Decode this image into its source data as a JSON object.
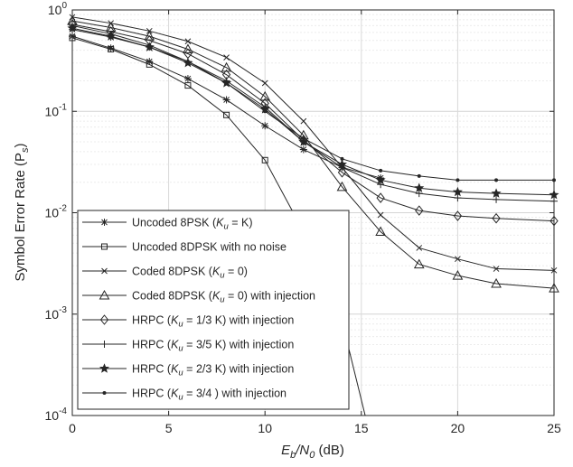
{
  "chart_data": {
    "type": "line",
    "xlabel": {
      "main": "E",
      "sub1": "b",
      "slash": "/N",
      "sub2": "0",
      "unit": " (dB)"
    },
    "ylabel": {
      "main": "Symbol Error Rate (P",
      "sub": "s",
      "close": ")"
    },
    "xlim": [
      0,
      25
    ],
    "ylim": [
      0.0001,
      1
    ],
    "yscale": "log",
    "grid": true,
    "legend_position": "bottom-left",
    "x_ticks": [
      "0",
      "5",
      "10",
      "15",
      "20",
      "25"
    ],
    "y_ticks": [
      {
        "base": "10",
        "exp": "0",
        "value": 1
      },
      {
        "base": "10",
        "exp": "-1",
        "value": 0.1
      },
      {
        "base": "10",
        "exp": "-2",
        "value": 0.01
      },
      {
        "base": "10",
        "exp": "-3",
        "value": 0.001
      },
      {
        "base": "10",
        "exp": "-4",
        "value": 0.0001
      }
    ],
    "series": [
      {
        "name": "Uncoded 8PSK (Ku = K)",
        "legend": {
          "pre": "Uncoded 8PSK (",
          "sym": "K",
          "sub": "u",
          "post": " = K)"
        },
        "marker": "asterisk",
        "x": [
          0,
          2,
          4,
          6,
          8,
          10,
          12,
          14,
          16
        ],
        "y": [
          0.55,
          0.42,
          0.31,
          0.21,
          0.13,
          0.072,
          0.042,
          0.028,
          0.022
        ]
      },
      {
        "name": "Uncoded 8DPSK with no noise",
        "legend": {
          "pre": "Uncoded 8DPSK with no noise",
          "sym": "",
          "sub": "",
          "post": ""
        },
        "marker": "square",
        "x": [
          0,
          2,
          4,
          6,
          8,
          10,
          12,
          14,
          15.2
        ],
        "y": [
          0.53,
          0.41,
          0.29,
          0.18,
          0.092,
          0.033,
          0.0065,
          0.00085,
          0.0001
        ]
      },
      {
        "name": "Coded 8DPSK (Ku = 0)",
        "legend": {
          "pre": "Coded 8DPSK (",
          "sym": "K",
          "sub": "u",
          "post": " = 0)"
        },
        "marker": "x",
        "x": [
          0,
          2,
          4,
          6,
          8,
          10,
          12,
          14,
          16,
          18,
          20,
          22,
          25
        ],
        "y": [
          0.85,
          0.74,
          0.62,
          0.49,
          0.34,
          0.19,
          0.08,
          0.028,
          0.0095,
          0.0045,
          0.0035,
          0.0028,
          0.0027
        ]
      },
      {
        "name": "Coded 8DPSK (Ku = 0) with injection",
        "legend": {
          "pre": "Coded 8DPSK (",
          "sym": "K",
          "sub": "u",
          "post": " = 0) with injection"
        },
        "marker": "triangle",
        "x": [
          0,
          2,
          4,
          6,
          8,
          10,
          12,
          14,
          16,
          18,
          20,
          22,
          25
        ],
        "y": [
          0.78,
          0.67,
          0.55,
          0.41,
          0.27,
          0.14,
          0.058,
          0.018,
          0.0065,
          0.0031,
          0.0024,
          0.002,
          0.0018
        ]
      },
      {
        "name": "HRPC (Ku = 1/3 K) with injection",
        "legend": {
          "pre": "HRPC (",
          "sym": "K",
          "sub": "u",
          "post": " = 1/3 K) with injection"
        },
        "marker": "diamond",
        "x": [
          0,
          2,
          4,
          6,
          8,
          10,
          12,
          14,
          16,
          18,
          20,
          22,
          25
        ],
        "y": [
          0.72,
          0.61,
          0.5,
          0.37,
          0.23,
          0.12,
          0.052,
          0.025,
          0.014,
          0.0105,
          0.0093,
          0.0088,
          0.0083
        ]
      },
      {
        "name": "HRPC (Ku = 3/5 K) with injection",
        "legend": {
          "pre": "HRPC (",
          "sym": "K",
          "sub": "u",
          "post": " = 3/5 K) with injection"
        },
        "marker": "plus",
        "x": [
          0,
          2,
          4,
          6,
          8,
          10,
          12,
          14,
          16,
          18,
          20,
          22,
          25
        ],
        "y": [
          0.64,
          0.54,
          0.43,
          0.31,
          0.2,
          0.11,
          0.05,
          0.028,
          0.019,
          0.0155,
          0.014,
          0.0135,
          0.013
        ]
      },
      {
        "name": "HRPC (Ku = 2/3 K) with injection",
        "legend": {
          "pre": "HRPC (",
          "sym": "K",
          "sub": "u",
          "post": " = 2/3 K) with injection"
        },
        "marker": "star",
        "x": [
          0,
          2,
          4,
          6,
          8,
          10,
          12,
          14,
          16,
          18,
          20,
          22,
          25
        ],
        "y": [
          0.66,
          0.55,
          0.43,
          0.3,
          0.19,
          0.105,
          0.05,
          0.03,
          0.021,
          0.0175,
          0.016,
          0.0155,
          0.015
        ]
      },
      {
        "name": "HRPC (Ku = 3/4 ) with injection",
        "legend": {
          "pre": "HRPC (",
          "sym": "K",
          "sub": "u",
          "post": " = 3/4 ) with injection"
        },
        "marker": "dot",
        "x": [
          0,
          2,
          4,
          6,
          8,
          10,
          12,
          14,
          16,
          18,
          20,
          22,
          25
        ],
        "y": [
          0.7,
          0.58,
          0.45,
          0.31,
          0.19,
          0.1,
          0.054,
          0.034,
          0.026,
          0.023,
          0.021,
          0.021,
          0.021
        ]
      }
    ]
  }
}
